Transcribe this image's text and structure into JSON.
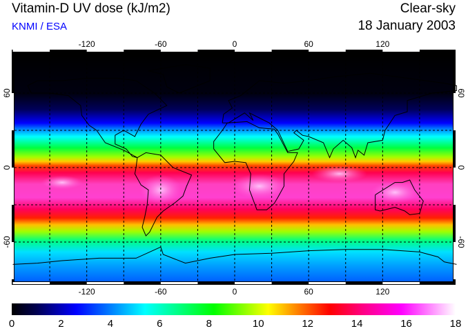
{
  "header": {
    "title": "Vitamin-D UV dose (kJ/m2)",
    "organization": "KNMI / ESA",
    "condition": "Clear-sky",
    "date": "18 January 2003"
  },
  "map": {
    "lon_ticks": [
      "-120",
      "-60",
      "0",
      "60",
      "120"
    ],
    "lon_tick_values": [
      -120,
      -60,
      0,
      60,
      120
    ],
    "lat_ticks": [
      "60",
      "0",
      "-60"
    ],
    "lat_tick_values": [
      60,
      0,
      -60
    ],
    "grid_spacing_deg": 30
  },
  "colorbar": {
    "labels": [
      "0",
      "2",
      "4",
      "6",
      "8",
      "10",
      "12",
      "14",
      "16",
      "18"
    ],
    "min": 0,
    "max": 18,
    "stops": [
      {
        "value": 0,
        "color": "#000000"
      },
      {
        "value": 1,
        "color": "#000050"
      },
      {
        "value": 2.6,
        "color": "#0000ff"
      },
      {
        "value": 4.2,
        "color": "#0090ff"
      },
      {
        "value": 5.4,
        "color": "#00ffff"
      },
      {
        "value": 8.2,
        "color": "#00ff00"
      },
      {
        "value": 10.4,
        "color": "#ffff00"
      },
      {
        "value": 11.6,
        "color": "#ff8000"
      },
      {
        "value": 12.9,
        "color": "#ff0000"
      },
      {
        "value": 14.2,
        "color": "#ff0080"
      },
      {
        "value": 15.8,
        "color": "#ff00ff"
      },
      {
        "value": 18,
        "color": "#ffffff"
      }
    ]
  }
}
